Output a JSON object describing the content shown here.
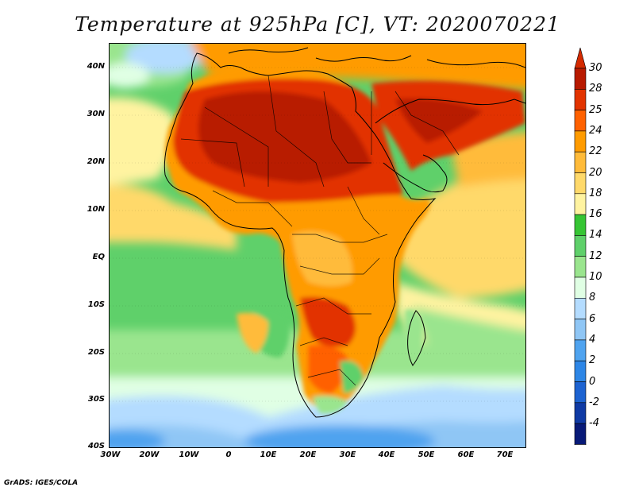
{
  "title": "Temperature at 925hPa [C], VT: 2020070221",
  "credit": "GrADS: IGES/COLA",
  "map": {
    "lat_labels": [
      "40N",
      "30N",
      "20N",
      "10N",
      "EQ",
      "10S",
      "20S",
      "30S",
      "40S"
    ],
    "lon_labels": [
      "30W",
      "20W",
      "10W",
      "0",
      "10E",
      "20E",
      "30E",
      "40E",
      "50E",
      "60E",
      "70E"
    ],
    "extent": {
      "lon": [
        -30,
        75
      ],
      "lat": [
        -40,
        45
      ]
    }
  },
  "colorbar": {
    "labels": [
      "30",
      "28",
      "25",
      "24",
      "22",
      "20",
      "18",
      "16",
      "14",
      "12",
      "10",
      "8",
      "6",
      "4",
      "2",
      "0",
      "-2",
      "-4"
    ],
    "colors": [
      "#b81a00",
      "#e23300",
      "#ff6100",
      "#ff9b00",
      "#ffbb3a",
      "#ffd96a",
      "#fff3a0",
      "#36c534",
      "#5fd06a",
      "#9ae58e",
      "#e0ffe4",
      "#b4dcff",
      "#8fc6f5",
      "#4fa3ef",
      "#2d86e6",
      "#1d63d1",
      "#0f3aa4",
      "#081a78"
    ],
    "end_top": "#d42a00",
    "end_bottom": "#d8d8ff"
  }
}
